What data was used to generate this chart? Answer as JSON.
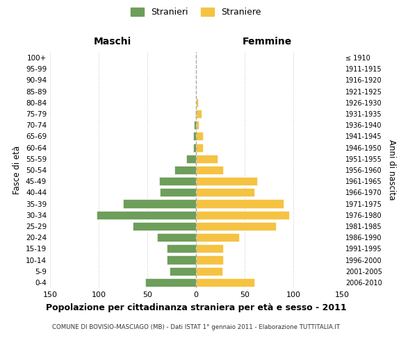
{
  "age_groups": [
    "0-4",
    "5-9",
    "10-14",
    "15-19",
    "20-24",
    "25-29",
    "30-34",
    "35-39",
    "40-44",
    "45-49",
    "50-54",
    "55-59",
    "60-64",
    "65-69",
    "70-74",
    "75-79",
    "80-84",
    "85-89",
    "90-94",
    "95-99",
    "100+"
  ],
  "birth_years": [
    "2006-2010",
    "2001-2005",
    "1996-2000",
    "1991-1995",
    "1986-1990",
    "1981-1985",
    "1976-1980",
    "1971-1975",
    "1966-1970",
    "1961-1965",
    "1956-1960",
    "1951-1955",
    "1946-1950",
    "1941-1945",
    "1936-1940",
    "1931-1935",
    "1926-1930",
    "1921-1925",
    "1916-1920",
    "1911-1915",
    "≤ 1910"
  ],
  "maschi": [
    52,
    27,
    30,
    30,
    40,
    65,
    102,
    75,
    37,
    38,
    22,
    10,
    3,
    3,
    2,
    1,
    0,
    0,
    0,
    0,
    0
  ],
  "femmine": [
    60,
    27,
    28,
    28,
    44,
    82,
    96,
    90,
    60,
    63,
    28,
    22,
    7,
    7,
    3,
    6,
    2,
    0,
    0,
    0,
    0
  ],
  "color_maschi": "#6d9e5a",
  "color_femmine": "#f5c242",
  "title": "Popolazione per cittadinanza straniera per età e sesso - 2011",
  "subtitle": "COMUNE DI BOVISIO-MASCIAGO (MB) - Dati ISTAT 1° gennaio 2011 - Elaborazione TUTTITALIA.IT",
  "xlabel_left": "Maschi",
  "xlabel_right": "Femmine",
  "ylabel_left": "Fasce di età",
  "ylabel_right": "Anni di nascita",
  "legend_maschi": "Stranieri",
  "legend_femmine": "Straniere",
  "xlim": 150,
  "background_color": "#ffffff",
  "grid_color": "#cccccc"
}
